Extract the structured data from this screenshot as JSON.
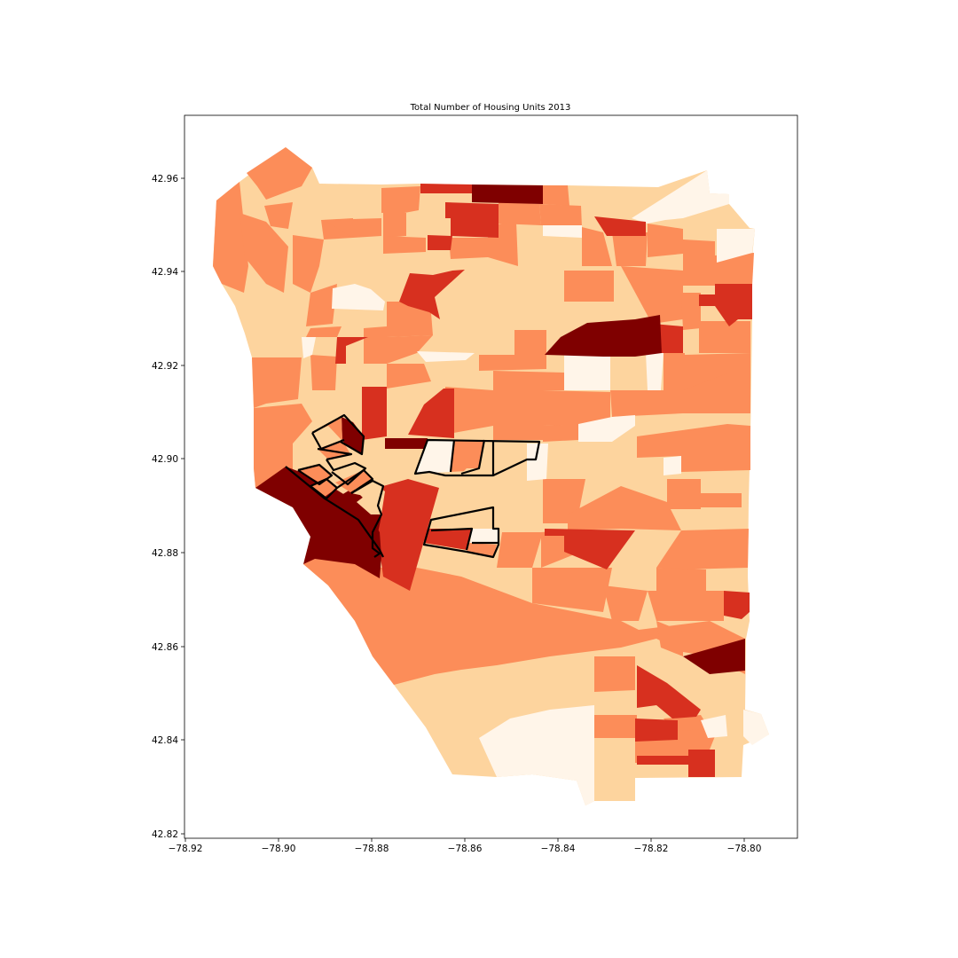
{
  "figure": {
    "title": "Total Number of Housing Units 2013"
  },
  "colors": {
    "c0": "#fff5e9",
    "c1": "#fdd49e",
    "c2": "#fc8d59",
    "c3": "#d7301f",
    "c4": "#7f0000",
    "outline": "#000000"
  },
  "chart_data": {
    "type": "choropleth",
    "title": "Total Number of Housing Units 2013",
    "xlabel": "",
    "ylabel": "",
    "xlim": [
      -78.9205,
      -78.789
    ],
    "ylim": [
      42.8195,
      42.974
    ],
    "x_ticks": [
      "−78.92",
      "−78.90",
      "−78.88",
      "−78.86",
      "−78.84",
      "−78.82",
      "−78.80"
    ],
    "y_ticks": [
      "42.82",
      "42.84",
      "42.86",
      "42.88",
      "42.90",
      "42.92",
      "42.94",
      "42.96"
    ],
    "colormap": "OrRd",
    "classes": 5,
    "highlighted_tracts_outlined": true
  }
}
